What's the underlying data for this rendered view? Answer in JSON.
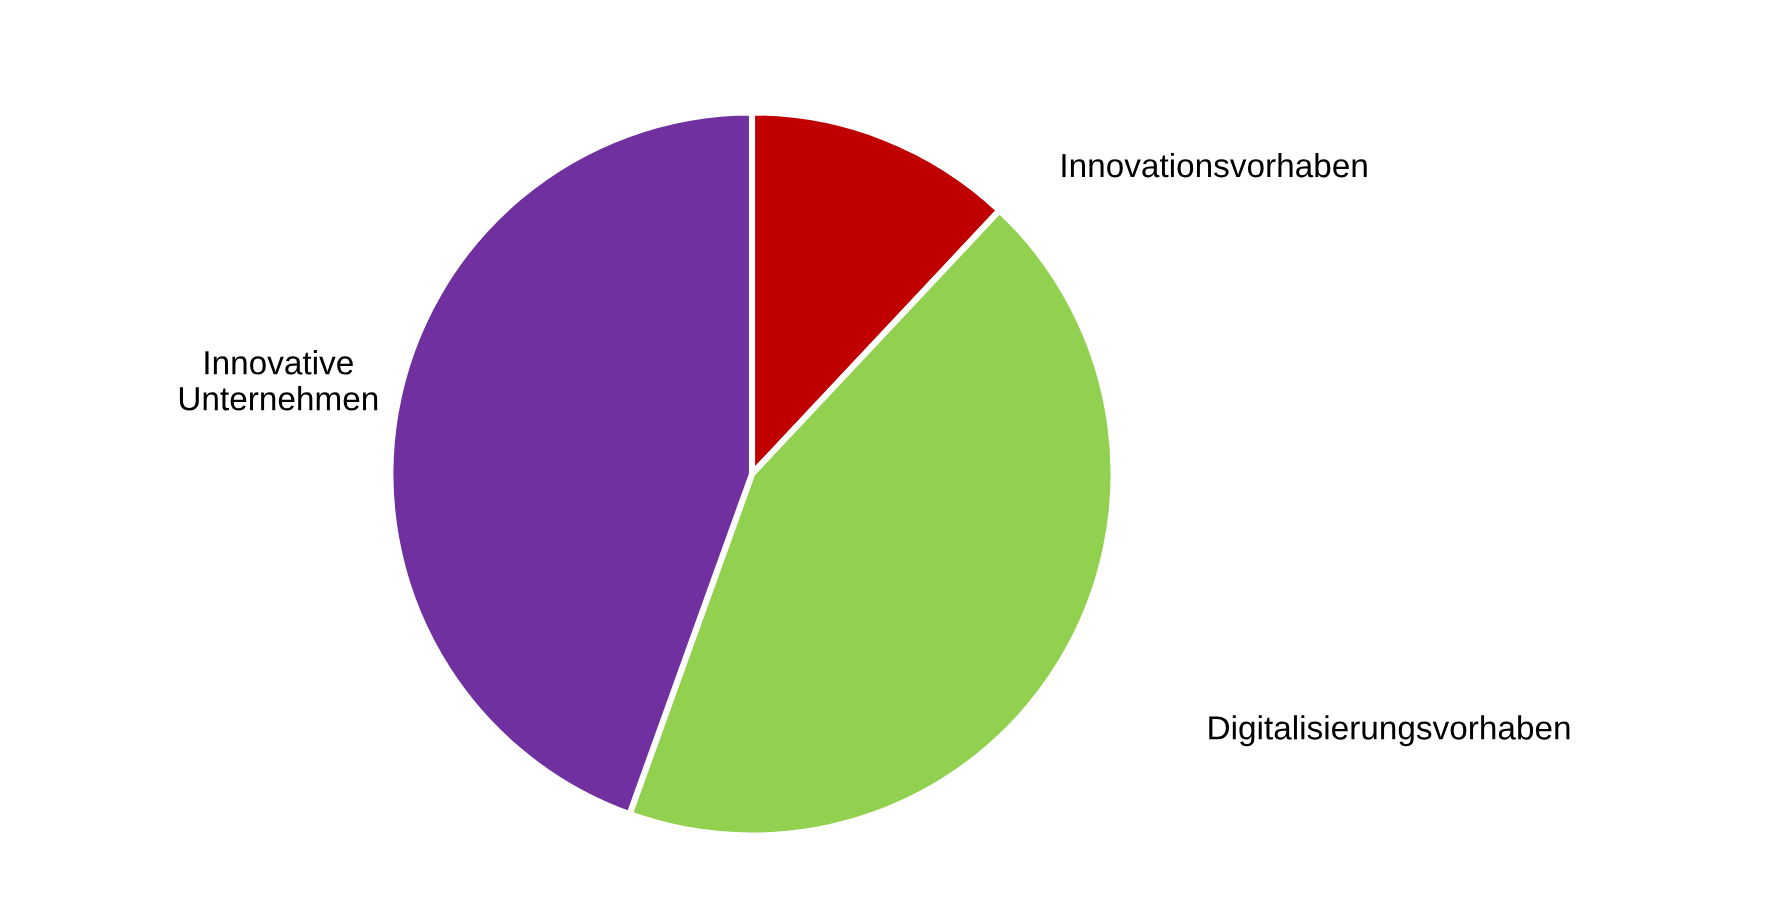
{
  "chart_data": {
    "type": "pie",
    "categories": [
      "Innovationsvorhaben",
      "Digitalisierungsvorhaben",
      "Innovative\nUnternehmen"
    ],
    "values": [
      12,
      43.5,
      44.5
    ],
    "colors": [
      "#c00000",
      "#92d050",
      "#7030a0"
    ],
    "legend": false
  }
}
